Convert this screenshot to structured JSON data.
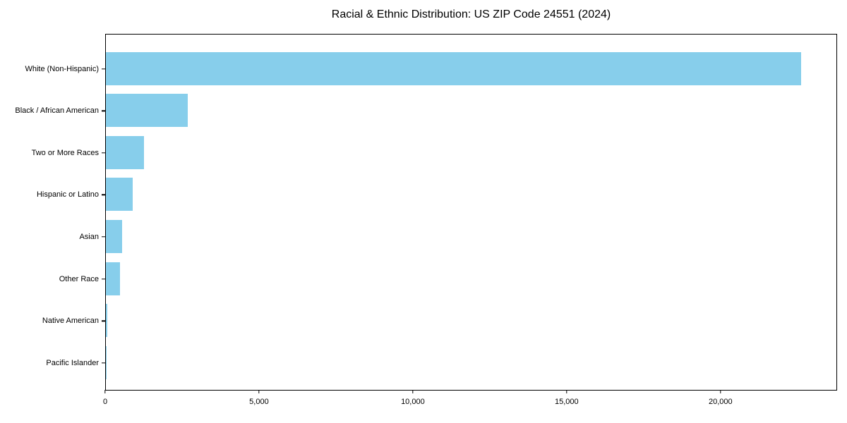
{
  "chart_data": {
    "type": "bar",
    "orientation": "horizontal",
    "title": "Racial & Ethnic Distribution: US ZIP Code 24551 (2024)",
    "categories": [
      "White (Non-Hispanic)",
      "Black / African American",
      "Two or More Races",
      "Hispanic or Latino",
      "Asian",
      "Other Race",
      "Native American",
      "Pacific Islander"
    ],
    "values": [
      22660,
      2660,
      1240,
      870,
      530,
      460,
      35,
      5
    ],
    "xlabel": "",
    "ylabel": "",
    "xlim": [
      0,
      23790
    ],
    "x_ticks": {
      "values": [
        0,
        5000,
        10000,
        15000,
        20000
      ],
      "labels": [
        "0",
        "5,000",
        "10,000",
        "15,000",
        "20,000"
      ]
    },
    "bar_color": "#87CEEB",
    "text_color": "#000000",
    "grid": false,
    "legend": "none"
  }
}
